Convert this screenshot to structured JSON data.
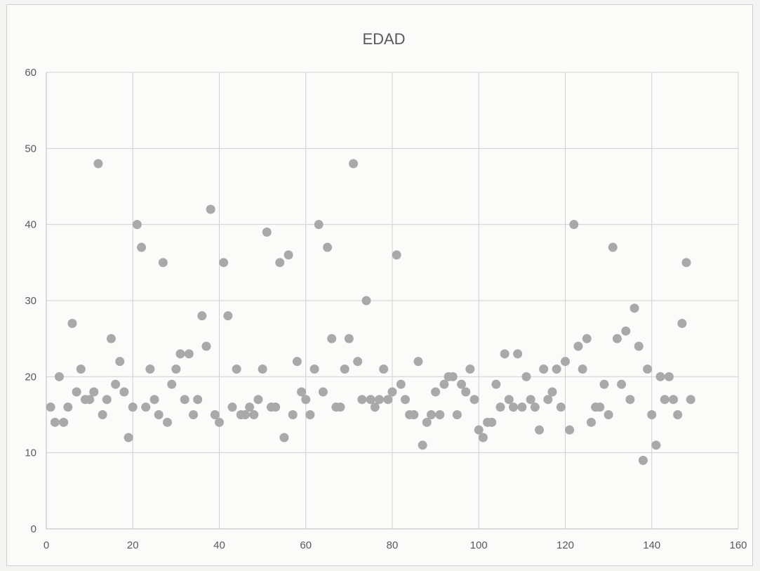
{
  "chart_data": {
    "type": "scatter",
    "title": "EDAD",
    "xlabel": "",
    "ylabel": "",
    "xlim": [
      0,
      160
    ],
    "ylim": [
      0,
      60
    ],
    "x_ticks": [
      "0",
      "20",
      "40",
      "60",
      "80",
      "100",
      "120",
      "140",
      "160"
    ],
    "y_ticks": [
      "0",
      "10",
      "20",
      "30",
      "40",
      "50",
      "60"
    ],
    "grid": true,
    "legend": "none",
    "marker_color": "#a9a9a9",
    "series": [
      {
        "points": [
          [
            1,
            16
          ],
          [
            2,
            14
          ],
          [
            3,
            20
          ],
          [
            4,
            14
          ],
          [
            5,
            16
          ],
          [
            6,
            27
          ],
          [
            7,
            18
          ],
          [
            8,
            21
          ],
          [
            9,
            17
          ],
          [
            10,
            17
          ],
          [
            11,
            18
          ],
          [
            12,
            48
          ],
          [
            13,
            15
          ],
          [
            14,
            17
          ],
          [
            15,
            25
          ],
          [
            16,
            19
          ],
          [
            17,
            22
          ],
          [
            18,
            18
          ],
          [
            19,
            12
          ],
          [
            20,
            16
          ],
          [
            21,
            40
          ],
          [
            22,
            37
          ],
          [
            23,
            16
          ],
          [
            24,
            21
          ],
          [
            25,
            17
          ],
          [
            26,
            15
          ],
          [
            27,
            35
          ],
          [
            28,
            14
          ],
          [
            29,
            19
          ],
          [
            30,
            21
          ],
          [
            31,
            23
          ],
          [
            32,
            17
          ],
          [
            33,
            23
          ],
          [
            34,
            15
          ],
          [
            35,
            17
          ],
          [
            36,
            28
          ],
          [
            37,
            24
          ],
          [
            38,
            42
          ],
          [
            39,
            15
          ],
          [
            40,
            14
          ],
          [
            41,
            35
          ],
          [
            42,
            28
          ],
          [
            43,
            16
          ],
          [
            44,
            21
          ],
          [
            45,
            15
          ],
          [
            46,
            15
          ],
          [
            47,
            16
          ],
          [
            48,
            15
          ],
          [
            49,
            17
          ],
          [
            50,
            21
          ],
          [
            51,
            39
          ],
          [
            52,
            16
          ],
          [
            53,
            16
          ],
          [
            54,
            35
          ],
          [
            55,
            12
          ],
          [
            56,
            36
          ],
          [
            57,
            15
          ],
          [
            58,
            22
          ],
          [
            59,
            18
          ],
          [
            60,
            17
          ],
          [
            61,
            15
          ],
          [
            62,
            21
          ],
          [
            63,
            40
          ],
          [
            64,
            18
          ],
          [
            65,
            37
          ],
          [
            66,
            25
          ],
          [
            67,
            16
          ],
          [
            68,
            16
          ],
          [
            69,
            21
          ],
          [
            70,
            25
          ],
          [
            71,
            48
          ],
          [
            72,
            22
          ],
          [
            73,
            17
          ],
          [
            74,
            30
          ],
          [
            75,
            17
          ],
          [
            76,
            16
          ],
          [
            77,
            17
          ],
          [
            78,
            21
          ],
          [
            79,
            17
          ],
          [
            80,
            18
          ],
          [
            81,
            36
          ],
          [
            82,
            19
          ],
          [
            83,
            17
          ],
          [
            84,
            15
          ],
          [
            85,
            15
          ],
          [
            86,
            22
          ],
          [
            87,
            11
          ],
          [
            88,
            14
          ],
          [
            89,
            15
          ],
          [
            90,
            18
          ],
          [
            91,
            15
          ],
          [
            92,
            19
          ],
          [
            93,
            20
          ],
          [
            94,
            20
          ],
          [
            95,
            15
          ],
          [
            96,
            19
          ],
          [
            97,
            18
          ],
          [
            98,
            21
          ],
          [
            99,
            17
          ],
          [
            100,
            13
          ],
          [
            101,
            12
          ],
          [
            102,
            14
          ],
          [
            103,
            14
          ],
          [
            104,
            19
          ],
          [
            105,
            16
          ],
          [
            106,
            23
          ],
          [
            107,
            17
          ],
          [
            108,
            16
          ],
          [
            109,
            23
          ],
          [
            110,
            16
          ],
          [
            111,
            20
          ],
          [
            112,
            17
          ],
          [
            113,
            16
          ],
          [
            114,
            13
          ],
          [
            115,
            21
          ],
          [
            116,
            17
          ],
          [
            117,
            18
          ],
          [
            118,
            21
          ],
          [
            119,
            16
          ],
          [
            120,
            22
          ],
          [
            121,
            13
          ],
          [
            122,
            40
          ],
          [
            123,
            24
          ],
          [
            124,
            21
          ],
          [
            125,
            25
          ],
          [
            126,
            14
          ],
          [
            127,
            16
          ],
          [
            128,
            16
          ],
          [
            129,
            19
          ],
          [
            130,
            15
          ],
          [
            131,
            37
          ],
          [
            132,
            25
          ],
          [
            133,
            19
          ],
          [
            134,
            26
          ],
          [
            135,
            17
          ],
          [
            136,
            29
          ],
          [
            137,
            24
          ],
          [
            138,
            9
          ],
          [
            139,
            21
          ],
          [
            140,
            15
          ],
          [
            141,
            11
          ],
          [
            142,
            20
          ],
          [
            143,
            17
          ],
          [
            144,
            20
          ],
          [
            145,
            17
          ],
          [
            146,
            15
          ],
          [
            147,
            27
          ],
          [
            148,
            35
          ],
          [
            149,
            17
          ]
        ]
      }
    ]
  }
}
